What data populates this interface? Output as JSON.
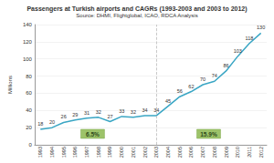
{
  "chart_data": {
    "type": "line",
    "title": "Passengers at Turkish airports and CAGRs (1993-2003 and 2003 to 2012)",
    "subtitle": "Source: DHMI, Flightglobal, ICAO, RDCA Analysis",
    "y_label": "Millions",
    "categories": [
      "1993",
      "1994",
      "1995",
      "1996",
      "1997",
      "1998",
      "1999",
      "2000",
      "2001",
      "2002",
      "2003",
      "2004",
      "2005",
      "2006",
      "2007",
      "2008",
      "2009",
      "2010",
      "2011",
      "2012"
    ],
    "values": [
      18,
      20,
      26,
      29,
      31,
      32,
      27,
      33,
      32,
      34,
      34,
      45,
      56,
      62,
      70,
      74,
      86,
      103,
      118,
      130
    ],
    "color": "#3aa6c4",
    "ylim": [
      0,
      140
    ],
    "yticks": [
      0,
      20,
      40,
      60,
      80,
      100,
      120,
      140
    ],
    "grid": true,
    "data_labels": true,
    "annotations": [
      "6.5%",
      "15.9%"
    ]
  }
}
